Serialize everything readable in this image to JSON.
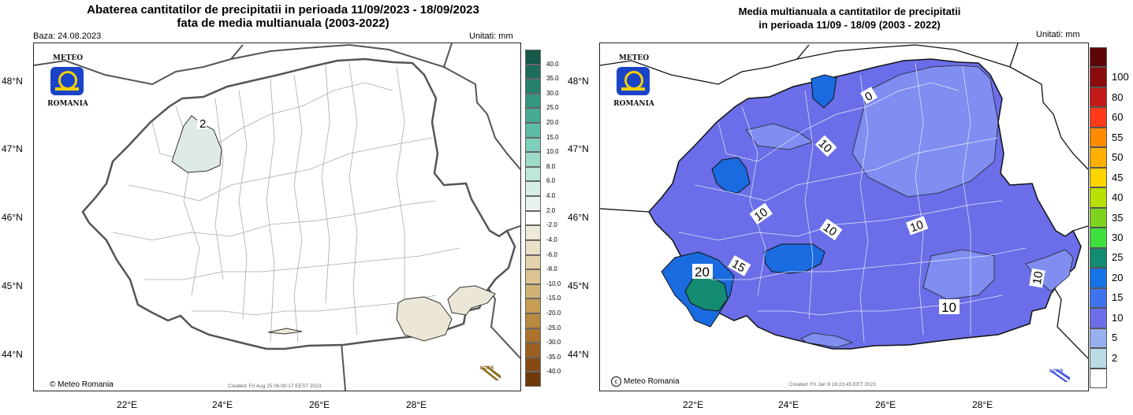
{
  "left": {
    "title_line1": "Abaterea cantitatilor de precipitatii in perioada 11/09/2023 - 18/09/2023",
    "title_line2": "fata de media multianuala (2003-2022)",
    "baza": "Baza: 24.08.2023",
    "units": "Unitati: mm",
    "logo_top": "METEO",
    "logo_bottom": "ROMANIA",
    "copyright": "© Meteo Romania",
    "created": "Created: Fri Aug 25 06:00:17 EEST 2023",
    "ncar": "NCAR",
    "contour_labels": [
      "2"
    ],
    "lat_labels": [
      "48°N",
      "47°N",
      "46°N",
      "45°N",
      "44°N"
    ],
    "lon_labels": [
      "22°E",
      "24°E",
      "26°E",
      "28°E"
    ],
    "colorbar": {
      "labels": [
        "40.0",
        "35.0",
        "30.0",
        "25.0",
        "20.0",
        "15.0",
        "10.0",
        "8.0",
        "6.0",
        "4.0",
        "2.0",
        "-2.0",
        "-4.0",
        "-6.0",
        "-8.0",
        "-10.0",
        "-15.0",
        "-20.0",
        "-25.0",
        "-30.0",
        "-35.0",
        "-40.0"
      ],
      "colors": [
        "#14584a",
        "#1e6b5b",
        "#27806c",
        "#35977f",
        "#47aa92",
        "#5dbda5",
        "#7ccfba",
        "#9cdbc9",
        "#bce6da",
        "#d5efe8",
        "#e8f3ef",
        "#ffffff",
        "#efe9d8",
        "#e9dfc5",
        "#e3d3ad",
        "#dbc492",
        "#d2b274",
        "#c79d56",
        "#bb8840",
        "#ad732e",
        "#9c5e20",
        "#864a12",
        "#6f3a0a"
      ]
    }
  },
  "right": {
    "title_line1": "Media multianuala a cantitatilor de precipitatii",
    "title_line2": "in perioada 11/09 - 18/09 (2003 - 2022)",
    "units": "Unitati: mm",
    "logo_top": "METEO",
    "logo_bottom": "ROMANIA",
    "copyright": "Meteo Romania",
    "created": "Created: Fri Jan  6 16:23:45 EET 2023",
    "ncar": "NCAR",
    "contour_labels": [
      "0",
      "10",
      "10",
      "10",
      "10",
      "15",
      "20",
      "10",
      "10"
    ],
    "lat_labels": [
      "48°N",
      "47°N",
      "46°N",
      "45°N",
      "44°N"
    ],
    "lon_labels": [
      "22°E",
      "24°E",
      "26°E",
      "28°E"
    ],
    "colorbar": {
      "labels": [
        "100",
        "80",
        "60",
        "55",
        "50",
        "45",
        "40",
        "35",
        "30",
        "25",
        "20",
        "15",
        "10",
        "5",
        "2"
      ],
      "colors": [
        "#5e0606",
        "#8a0c0c",
        "#c41919",
        "#ff3a1a",
        "#ff8c00",
        "#ffb000",
        "#ffd500",
        "#b8e000",
        "#7ed321",
        "#3fdf3f",
        "#138a72",
        "#1673e6",
        "#3e73f0",
        "#6b6ee8",
        "#98b0f0",
        "#b9dbe6",
        "#ffffff"
      ]
    }
  }
}
